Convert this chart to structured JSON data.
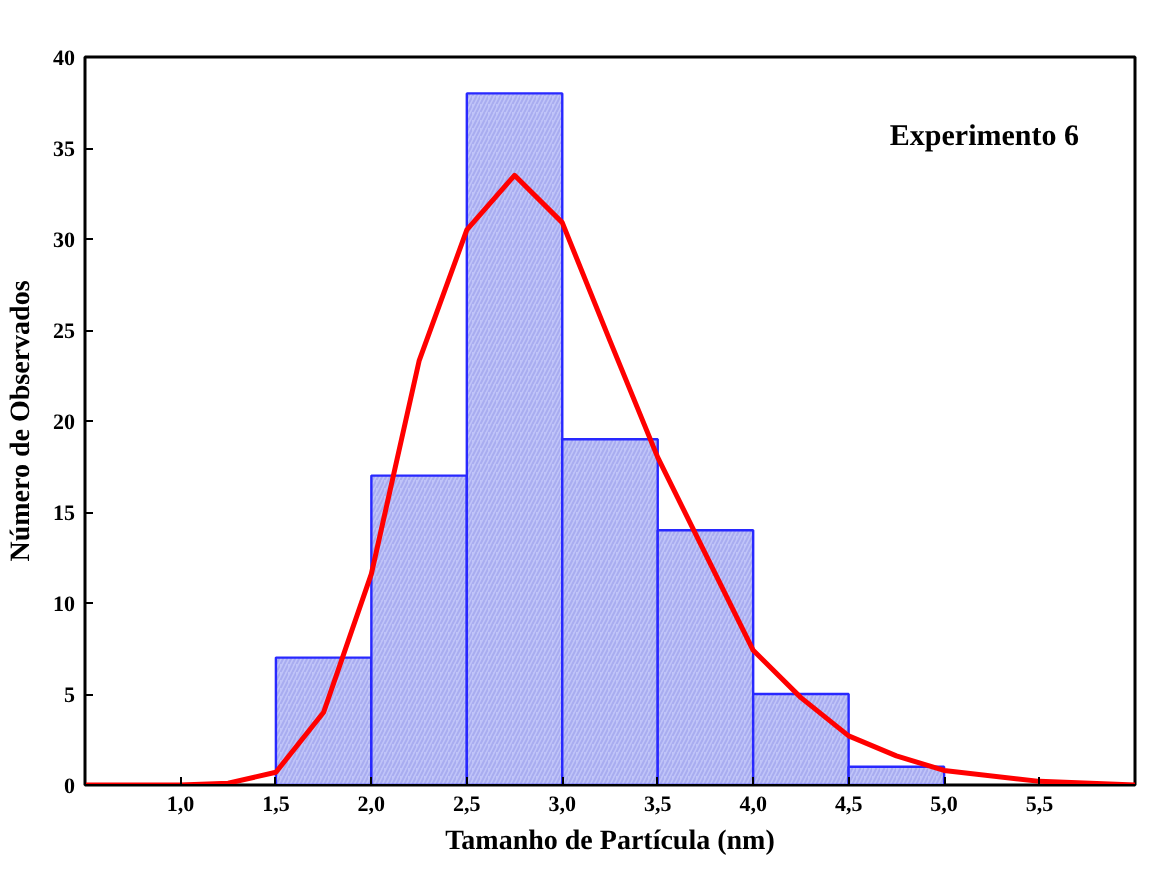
{
  "chart_data": {
    "type": "histogram",
    "xlabel": "Tamanho de Partícula (nm)",
    "ylabel": "Número de Observados",
    "bins": [
      1.5,
      2.0,
      2.5,
      3.0,
      3.5,
      4.0,
      4.5,
      5.0
    ],
    "values": [
      7,
      17,
      38,
      19,
      14,
      5,
      1
    ],
    "color": "#c0c4f8",
    "series": [
      {
        "type": "line",
        "color": "#ff0000",
        "x": [
          0.5,
          1.0,
          1.25,
          1.5,
          1.75,
          2.0,
          2.25,
          2.5,
          2.75,
          3.0,
          3.25,
          3.5,
          3.75,
          4.0,
          4.25,
          4.5,
          4.75,
          5.0,
          5.5,
          6.0
        ],
        "values": [
          0,
          0,
          0.1,
          0.7,
          4.0,
          11.6,
          23.3,
          30.5,
          33.5,
          30.9,
          24.4,
          18,
          12.7,
          7.4,
          4.8,
          2.7,
          1.6,
          0.8,
          0.2,
          0
        ]
      }
    ],
    "xlim": [
      0.5,
      6.0
    ],
    "ylim": [
      0,
      40
    ],
    "xticks": [
      {
        "value": 1.0,
        "label": "1,0"
      },
      {
        "value": 1.5,
        "label": "1,5"
      },
      {
        "value": 2.0,
        "label": "2,0"
      },
      {
        "value": 2.5,
        "label": "2,5"
      },
      {
        "value": 3.0,
        "label": "3,0"
      },
      {
        "value": 3.5,
        "label": "3,5"
      },
      {
        "value": 4.0,
        "label": "4,0"
      },
      {
        "value": 4.5,
        "label": "4,5"
      },
      {
        "value": 5.0,
        "label": "5,0"
      },
      {
        "value": 5.5,
        "label": "5,5"
      }
    ],
    "yticks": [
      0,
      5,
      10,
      15,
      20,
      25,
      30,
      35,
      40
    ],
    "annotations": [
      "Experimento 6"
    ],
    "grid": false
  }
}
